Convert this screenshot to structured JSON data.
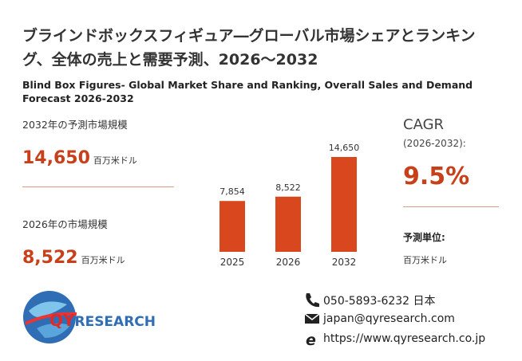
{
  "header": {
    "title": "ブラインドボックスフィギュア―グローバル市場シェアとランキング、全体の売上と需要予測、2026～2032",
    "subtitle": "Blind Box Figures- Global Market Share and Ranking, Overall Sales and Demand Forecast 2026-2032"
  },
  "left_panel": {
    "forecast_label": "2032年の予測市場規模",
    "forecast_value": "14,650",
    "forecast_unit": "百万米ドル",
    "current_label": "2026年の市場規模",
    "current_value": "8,522",
    "current_unit": "百万米ドル"
  },
  "right_panel": {
    "cagr_label": "CAGR",
    "cagr_period": "(2026-2032):",
    "cagr_value": "9.5%",
    "unit_label": "予測単位:",
    "unit_value": "百万米ドル"
  },
  "logo": {
    "prefix": "QY",
    "rest": "RESEARCH"
  },
  "contact": {
    "phone": "050-5893-6232 日本",
    "email": "japan@qyresearch.com",
    "web": "https://www.qyresearch.co.jp"
  },
  "chart_data": {
    "type": "bar",
    "categories": [
      "2025",
      "2026",
      "2032"
    ],
    "values": [
      7854,
      8522,
      14650
    ],
    "value_labels": [
      "7,854",
      "8,522",
      "14,650"
    ],
    "color": "#d9471f"
  }
}
